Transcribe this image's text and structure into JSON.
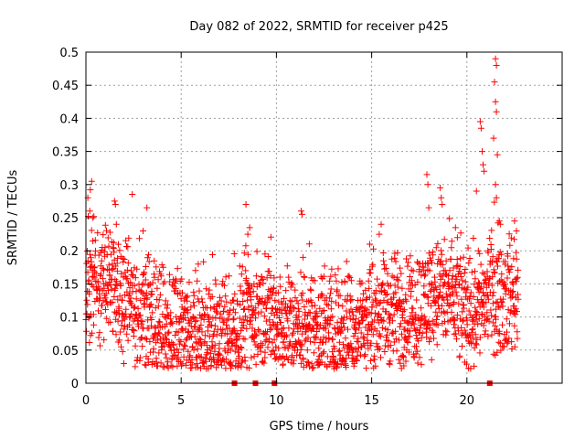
{
  "chart_data": {
    "type": "scatter",
    "title": "Day 082 of 2022, SRMTID for receiver p425",
    "xlabel": "GPS time / hours",
    "ylabel": "SRMTID / TECUs",
    "xlim": [
      0,
      25
    ],
    "ylim": [
      0,
      0.5
    ],
    "grid": true,
    "marker": "+",
    "color": "#ff0000",
    "x_ticks": [
      0,
      5,
      10,
      15,
      20
    ],
    "x_tick_labels": [
      "0",
      "5",
      "10",
      "15",
      "20"
    ],
    "y_ticks": [
      0,
      0.05,
      0.1,
      0.15,
      0.2,
      0.25,
      0.3,
      0.35,
      0.4,
      0.45,
      0.5
    ],
    "y_tick_labels": [
      "0",
      "0.05",
      "0.1",
      "0.15",
      "0.2",
      "0.25",
      "0.3",
      "0.35",
      "0.4",
      "0.45",
      "0.5"
    ],
    "zero_markers_x": [
      7.8,
      8.9,
      9.9,
      21.2
    ],
    "trend": [
      [
        0,
        0.14
      ],
      [
        0.5,
        0.16
      ],
      [
        1,
        0.15
      ],
      [
        1.5,
        0.14
      ],
      [
        2,
        0.13
      ],
      [
        2.5,
        0.11
      ],
      [
        3,
        0.12
      ],
      [
        3.5,
        0.1
      ],
      [
        4,
        0.085
      ],
      [
        4.5,
        0.08
      ],
      [
        5,
        0.075
      ],
      [
        5.5,
        0.07
      ],
      [
        6,
        0.072
      ],
      [
        6.5,
        0.07
      ],
      [
        7,
        0.072
      ],
      [
        7.5,
        0.075
      ],
      [
        8,
        0.085
      ],
      [
        8.5,
        0.1
      ],
      [
        9,
        0.105
      ],
      [
        9.5,
        0.1
      ],
      [
        10,
        0.095
      ],
      [
        10.5,
        0.085
      ],
      [
        11,
        0.08
      ],
      [
        11.5,
        0.085
      ],
      [
        12,
        0.09
      ],
      [
        12.5,
        0.085
      ],
      [
        13,
        0.08
      ],
      [
        13.5,
        0.085
      ],
      [
        14,
        0.085
      ],
      [
        14.5,
        0.09
      ],
      [
        15,
        0.1
      ],
      [
        15.5,
        0.11
      ],
      [
        16,
        0.11
      ],
      [
        16.5,
        0.105
      ],
      [
        17,
        0.11
      ],
      [
        17.5,
        0.115
      ],
      [
        18,
        0.13
      ],
      [
        18.5,
        0.14
      ],
      [
        19,
        0.13
      ],
      [
        19.5,
        0.12
      ],
      [
        20,
        0.11
      ],
      [
        20.5,
        0.115
      ],
      [
        21,
        0.13
      ],
      [
        21.5,
        0.14
      ],
      [
        22,
        0.13
      ],
      [
        22.5,
        0.14
      ]
    ],
    "spikes": [
      [
        0.1,
        0.28
      ],
      [
        0.2,
        0.26
      ],
      [
        0.3,
        0.305
      ],
      [
        0.35,
        0.25
      ],
      [
        1.5,
        0.275
      ],
      [
        1.55,
        0.27
      ],
      [
        1.6,
        0.24
      ],
      [
        3.2,
        0.265
      ],
      [
        3.0,
        0.23
      ],
      [
        8.4,
        0.27
      ],
      [
        8.5,
        0.225
      ],
      [
        8.6,
        0.235
      ],
      [
        9.4,
        0.195
      ],
      [
        11.3,
        0.26
      ],
      [
        11.35,
        0.255
      ],
      [
        11.4,
        0.19
      ],
      [
        14.9,
        0.21
      ],
      [
        15.5,
        0.24
      ],
      [
        15.4,
        0.225
      ],
      [
        17.9,
        0.315
      ],
      [
        17.95,
        0.3
      ],
      [
        18.0,
        0.265
      ],
      [
        18.6,
        0.295
      ],
      [
        18.65,
        0.28
      ],
      [
        18.7,
        0.27
      ],
      [
        19.4,
        0.235
      ],
      [
        19.5,
        0.22
      ],
      [
        20.7,
        0.395
      ],
      [
        20.75,
        0.385
      ],
      [
        20.8,
        0.35
      ],
      [
        20.85,
        0.33
      ],
      [
        20.9,
        0.32
      ],
      [
        21.5,
        0.49
      ],
      [
        21.55,
        0.48
      ],
      [
        21.45,
        0.455
      ],
      [
        21.5,
        0.425
      ],
      [
        21.55,
        0.41
      ],
      [
        21.4,
        0.37
      ],
      [
        21.6,
        0.345
      ],
      [
        21.5,
        0.3
      ],
      [
        21.55,
        0.28
      ],
      [
        21.7,
        0.245
      ],
      [
        21.75,
        0.24
      ],
      [
        22.5,
        0.245
      ],
      [
        22.6,
        0.23
      ],
      [
        20.5,
        0.29
      ],
      [
        20.6,
        0.2
      ],
      [
        21.1,
        0.2
      ]
    ]
  }
}
